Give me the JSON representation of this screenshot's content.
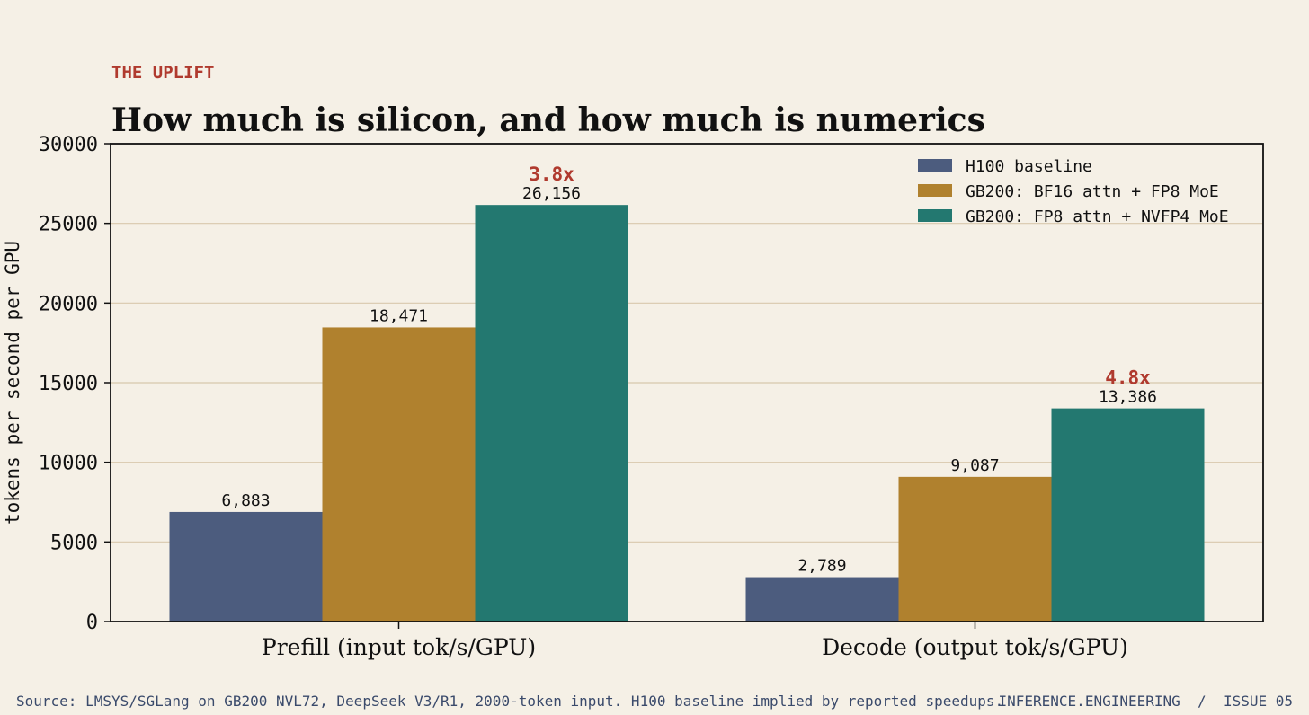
{
  "kicker": "THE UPLIFT",
  "title": "How much is silicon, and how much is numerics",
  "footer": {
    "source": "Source: LMSYS/SGLang on GB200 NVL72, DeepSeek V3/R1, 2000-token input. H100 baseline implied by reported speedups.",
    "brand": "INFERENCE.ENGINEERING  /  ISSUE 05"
  },
  "colors": {
    "background": "#f5f0e6",
    "kicker": "#b03a2e",
    "multiplier": "#b03a2e",
    "grid": "#d8c8ad",
    "footer": "#3a4a6b"
  },
  "chart_data": {
    "type": "bar",
    "categories": [
      "Prefill (input tok/s/GPU)",
      "Decode (output tok/s/GPU)"
    ],
    "ylabel": "tokens per second per GPU",
    "xlabel": "",
    "ylim": [
      0,
      30000
    ],
    "yticks": [
      "0",
      "5000",
      "10000",
      "15000",
      "20000",
      "25000",
      "30000"
    ],
    "grid": "horizontal",
    "legend_position": "top-right",
    "series": [
      {
        "name": "H100 baseline",
        "color": "#4c5c7e",
        "values": [
          6883,
          2789
        ],
        "labels": [
          "6,883",
          "2,789"
        ]
      },
      {
        "name": "GB200: BF16 attn + FP8 MoE",
        "color": "#b0812e",
        "values": [
          18471,
          9087
        ],
        "labels": [
          "18,471",
          "9,087"
        ]
      },
      {
        "name": "GB200: FP8 attn + NVFP4 MoE",
        "color": "#237870",
        "values": [
          26156,
          13386
        ],
        "labels": [
          "26,156",
          "13,386"
        ]
      }
    ],
    "annotations": [
      "3.8x",
      "4.8x"
    ]
  }
}
